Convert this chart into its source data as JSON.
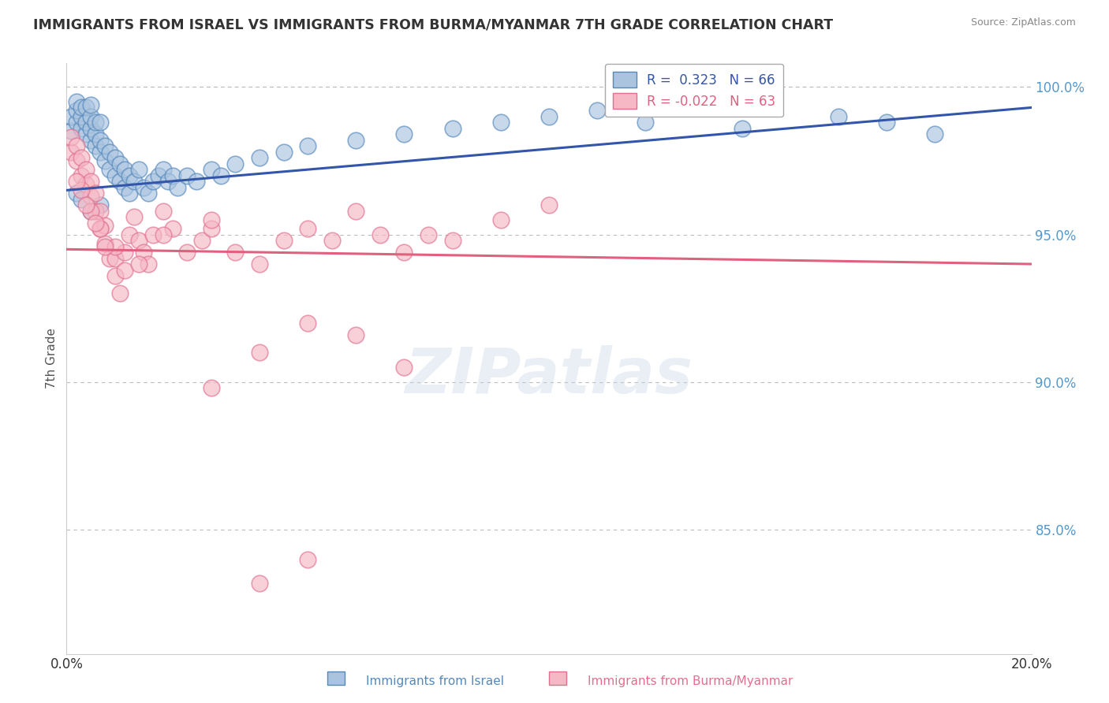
{
  "title": "IMMIGRANTS FROM ISRAEL VS IMMIGRANTS FROM BURMA/MYANMAR 7TH GRADE CORRELATION CHART",
  "source": "Source: ZipAtlas.com",
  "xlabel_blue": "Immigrants from Israel",
  "xlabel_pink": "Immigrants from Burma/Myanmar",
  "ylabel": "7th Grade",
  "xlim": [
    0.0,
    0.2
  ],
  "ylim": [
    0.808,
    1.008
  ],
  "xtick_labels": [
    "0.0%",
    "20.0%"
  ],
  "xtick_positions": [
    0.0,
    0.2
  ],
  "ytick_labels": [
    "85.0%",
    "90.0%",
    "95.0%",
    "100.0%"
  ],
  "ytick_positions": [
    0.85,
    0.9,
    0.95,
    1.0
  ],
  "R_blue": 0.323,
  "N_blue": 66,
  "R_pink": -0.022,
  "N_pink": 63,
  "blue_color": "#aac4e0",
  "blue_edge_color": "#5588bb",
  "pink_color": "#f5b8c4",
  "pink_edge_color": "#e07090",
  "blue_line_color": "#3355aa",
  "pink_line_color": "#e06080",
  "blue_scatter_x": [
    0.001,
    0.001,
    0.002,
    0.002,
    0.002,
    0.003,
    0.003,
    0.003,
    0.004,
    0.004,
    0.004,
    0.005,
    0.005,
    0.005,
    0.005,
    0.006,
    0.006,
    0.006,
    0.007,
    0.007,
    0.007,
    0.008,
    0.008,
    0.009,
    0.009,
    0.01,
    0.01,
    0.011,
    0.011,
    0.012,
    0.012,
    0.013,
    0.013,
    0.014,
    0.015,
    0.016,
    0.017,
    0.018,
    0.019,
    0.02,
    0.021,
    0.022,
    0.023,
    0.025,
    0.027,
    0.03,
    0.032,
    0.035,
    0.04,
    0.045,
    0.05,
    0.06,
    0.07,
    0.08,
    0.09,
    0.1,
    0.11,
    0.12,
    0.14,
    0.16,
    0.17,
    0.18,
    0.002,
    0.003,
    0.005,
    0.007
  ],
  "blue_scatter_y": [
    0.985,
    0.99,
    0.988,
    0.992,
    0.995,
    0.986,
    0.99,
    0.993,
    0.984,
    0.988,
    0.993,
    0.982,
    0.986,
    0.99,
    0.994,
    0.98,
    0.984,
    0.988,
    0.978,
    0.982,
    0.988,
    0.975,
    0.98,
    0.972,
    0.978,
    0.97,
    0.976,
    0.968,
    0.974,
    0.966,
    0.972,
    0.964,
    0.97,
    0.968,
    0.972,
    0.966,
    0.964,
    0.968,
    0.97,
    0.972,
    0.968,
    0.97,
    0.966,
    0.97,
    0.968,
    0.972,
    0.97,
    0.974,
    0.976,
    0.978,
    0.98,
    0.982,
    0.984,
    0.986,
    0.988,
    0.99,
    0.992,
    0.988,
    0.986,
    0.99,
    0.988,
    0.984,
    0.964,
    0.962,
    0.958,
    0.96
  ],
  "pink_scatter_x": [
    0.001,
    0.001,
    0.002,
    0.002,
    0.003,
    0.003,
    0.004,
    0.004,
    0.005,
    0.005,
    0.006,
    0.006,
    0.007,
    0.007,
    0.008,
    0.008,
    0.009,
    0.01,
    0.01,
    0.011,
    0.012,
    0.012,
    0.013,
    0.014,
    0.015,
    0.016,
    0.017,
    0.018,
    0.02,
    0.022,
    0.025,
    0.028,
    0.03,
    0.035,
    0.04,
    0.045,
    0.05,
    0.055,
    0.06,
    0.065,
    0.07,
    0.075,
    0.08,
    0.09,
    0.1,
    0.003,
    0.005,
    0.007,
    0.01,
    0.015,
    0.02,
    0.03,
    0.002,
    0.004,
    0.006,
    0.008,
    0.05,
    0.06,
    0.04,
    0.07,
    0.03,
    0.05,
    0.04
  ],
  "pink_scatter_y": [
    0.978,
    0.983,
    0.975,
    0.98,
    0.97,
    0.976,
    0.967,
    0.972,
    0.963,
    0.968,
    0.958,
    0.964,
    0.952,
    0.958,
    0.947,
    0.953,
    0.942,
    0.936,
    0.942,
    0.93,
    0.938,
    0.944,
    0.95,
    0.956,
    0.948,
    0.944,
    0.94,
    0.95,
    0.958,
    0.952,
    0.944,
    0.948,
    0.952,
    0.944,
    0.94,
    0.948,
    0.952,
    0.948,
    0.958,
    0.95,
    0.944,
    0.95,
    0.948,
    0.955,
    0.96,
    0.965,
    0.958,
    0.952,
    0.946,
    0.94,
    0.95,
    0.955,
    0.968,
    0.96,
    0.954,
    0.946,
    0.92,
    0.916,
    0.91,
    0.905,
    0.898,
    0.84,
    0.832
  ],
  "blue_line_x0": 0.0,
  "blue_line_y0": 0.965,
  "blue_line_x1": 0.2,
  "blue_line_y1": 0.993,
  "pink_line_x0": 0.0,
  "pink_line_y0": 0.945,
  "pink_line_x1": 0.2,
  "pink_line_y1": 0.94,
  "watermark_text": "ZIPatlas",
  "background_color": "#FFFFFF",
  "grid_color": "#BBBBBB"
}
